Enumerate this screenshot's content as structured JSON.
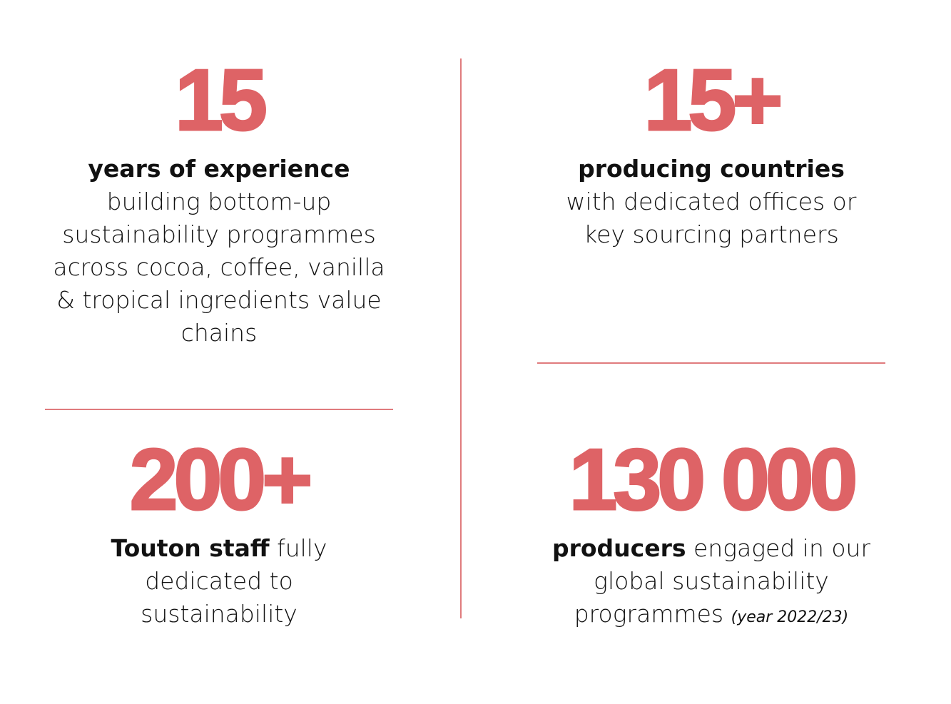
{
  "stats": [
    {
      "number": "15",
      "lead": "years of experience",
      "text": "building bottom-up sustainability programmes across cocoa, coffee, vanilla & tropical ingredients value chains"
    },
    {
      "number": "15+",
      "lead": "producing countries",
      "text": "with dedicated offices or key sourcing partners"
    },
    {
      "number": "200+",
      "lead": "Touton staff",
      "text": "fully dedicated to sustainability"
    },
    {
      "number": "130 000",
      "lead": "producers",
      "text": "engaged in our global sustainability programmes",
      "note": "(year 2022/23)"
    }
  ]
}
